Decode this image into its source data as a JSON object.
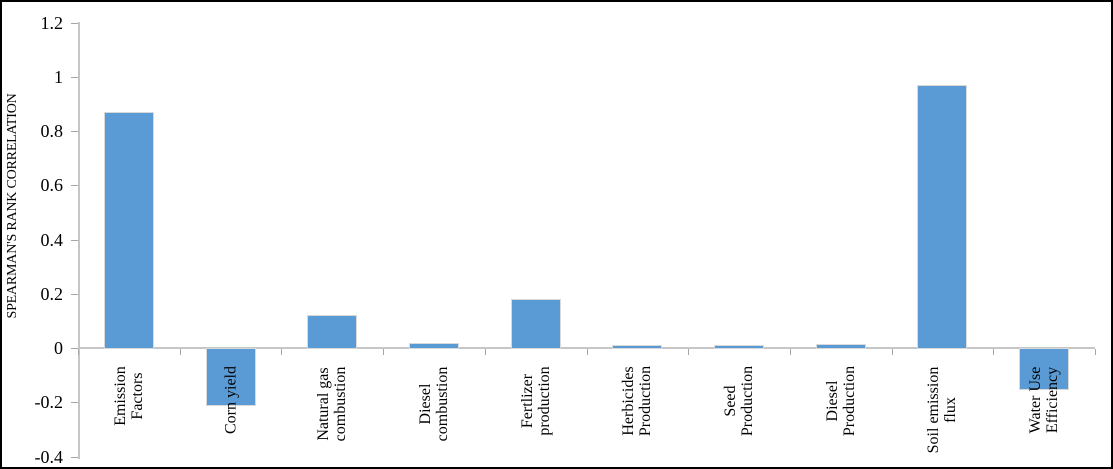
{
  "chart_data": {
    "type": "bar",
    "title": "",
    "xlabel": "",
    "ylabel": "SPEARMAN'S RANK CORRELATION",
    "categories": [
      "Emission\nFactors",
      "Corn yield",
      "Natural gas\ncombustion",
      "Diesel\ncombustion",
      "Fertlizer\nproduction",
      "Herbicides\nProduction",
      "Seed\nProduction",
      "Diesel\nProduction",
      "Soil emission\nflux",
      "Water Use\nEfficiency"
    ],
    "values": [
      0.87,
      -0.21,
      0.12,
      0.02,
      0.18,
      0.01,
      0.01,
      0.015,
      0.97,
      -0.15
    ],
    "ylim": [
      -0.4,
      1.2
    ],
    "y_tick_values": [
      1.2,
      1,
      0.8,
      0.6,
      0.4,
      0.2,
      0,
      -0.2,
      -0.4
    ],
    "y_tick_labels": [
      "1.2",
      "1",
      "0.8",
      "0.6",
      "0.4",
      "0.2",
      "0",
      "-0.2",
      "-0.4"
    ],
    "grid": false,
    "legend_position": "none",
    "colors": {
      "bar_fill": "#5B9BD5",
      "bar_border": "#D9D9D9",
      "axis_line": "#C6C6C6",
      "tick_mark": "#A6A6A6",
      "text": "#000000",
      "figure_border": "#000000",
      "background": "#FFFFFF"
    }
  }
}
